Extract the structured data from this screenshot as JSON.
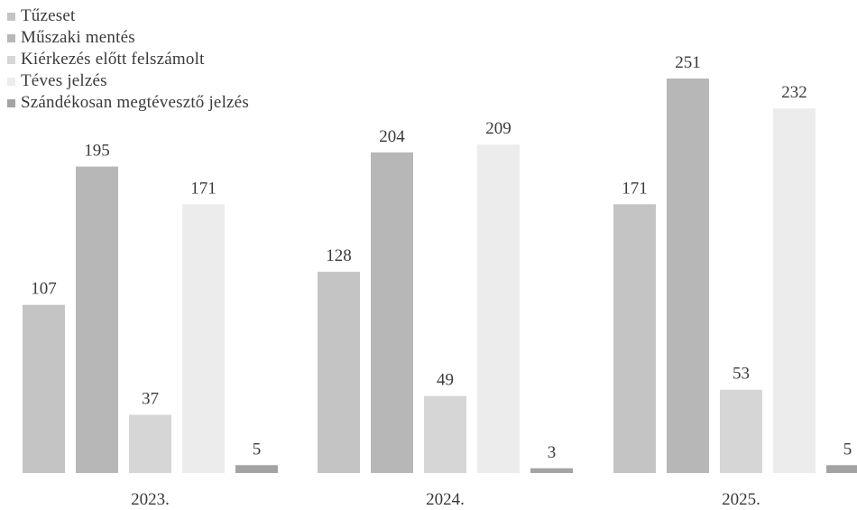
{
  "chart_data": {
    "type": "bar",
    "title": "",
    "xlabel": "",
    "ylabel": "",
    "categories": [
      "2023.",
      "2024.",
      "2025."
    ],
    "series": [
      {
        "name": "Tűzeset",
        "values": [
          107,
          128,
          171
        ],
        "color": "#c4c4c4"
      },
      {
        "name": "Műszaki mentés",
        "values": [
          195,
          204,
          251
        ],
        "color": "#b7b7b7"
      },
      {
        "name": "Kiérkezés előtt felszámolt",
        "values": [
          37,
          49,
          53
        ],
        "color": "#d6d6d6"
      },
      {
        "name": "Téves jelzés",
        "values": [
          171,
          209,
          232
        ],
        "color": "#ececec"
      },
      {
        "name": "Szándékosan megtévesztő jelzés",
        "values": [
          5,
          3,
          5
        ],
        "color": "#a3a3a3"
      }
    ],
    "ylim": [
      0,
      251
    ],
    "grid": false,
    "legend": "top-left"
  }
}
